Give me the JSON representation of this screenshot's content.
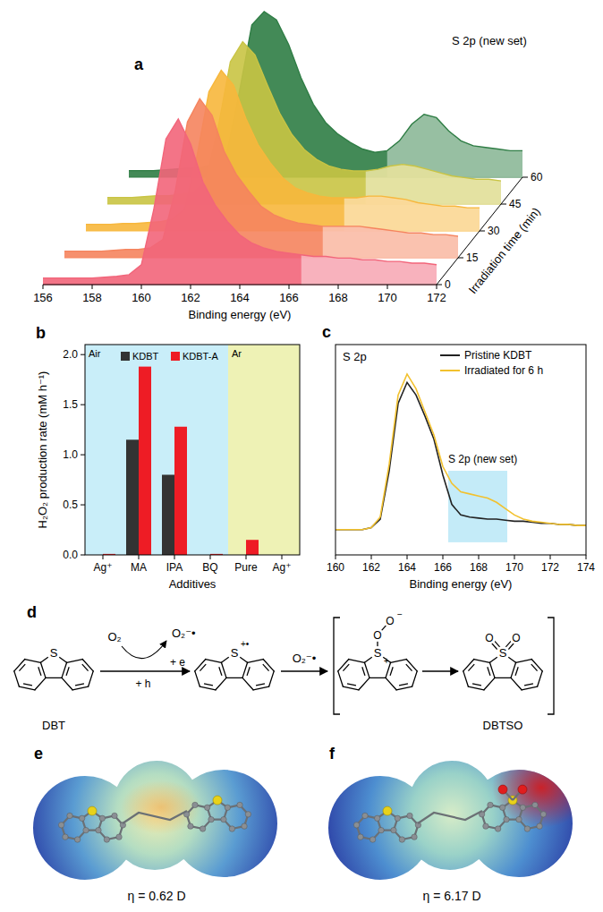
{
  "chart_data": [
    {
      "type": "waterfall",
      "panel_label": "a",
      "annotation": "S 2p (new set)",
      "x_label": "Binding energy (eV)",
      "z_label": "Irradiation time (min)",
      "x": [
        156,
        156.5,
        157,
        157.5,
        158,
        158.5,
        159,
        159.5,
        160,
        160.5,
        161,
        161.5,
        162,
        162.5,
        163,
        163.5,
        164,
        164.5,
        165,
        165.5,
        166,
        166.5,
        167,
        167.5,
        168,
        168.5,
        169,
        169.5,
        170,
        170.5,
        171,
        171.5,
        172
      ],
      "xlim": [
        156,
        172
      ],
      "xticks": [
        156,
        158,
        160,
        162,
        164,
        166,
        168,
        170,
        172
      ],
      "ylim": [
        0,
        100
      ],
      "zlim": [
        0,
        60
      ],
      "zticks": [
        0,
        15,
        30,
        45,
        60
      ],
      "highlight": {
        "x": [
          166.4,
          172
        ]
      },
      "series": [
        {
          "z": 0,
          "color": "#f2657a",
          "values": [
            4,
            4,
            4,
            4,
            4,
            4.5,
            5,
            6,
            12,
            45,
            88,
            100,
            85,
            62,
            48,
            38,
            30,
            25,
            22,
            20,
            19,
            18,
            17,
            17,
            16,
            16,
            15,
            15,
            14,
            14,
            13,
            13,
            12
          ]
        },
        {
          "z": 15,
          "color": "#f5845e",
          "values": [
            4,
            4,
            4,
            4,
            4.5,
            5,
            5,
            6,
            11,
            40,
            82,
            96,
            86,
            64,
            50,
            40,
            31,
            26,
            23,
            21,
            20,
            19,
            19,
            19,
            19,
            18,
            17,
            16,
            15,
            15,
            14,
            14,
            13
          ]
        },
        {
          "z": 30,
          "color": "#f7b73c",
          "values": [
            4,
            4,
            4,
            4.5,
            4.5,
            5,
            5.5,
            7,
            13,
            44,
            84,
            97,
            88,
            68,
            52,
            41,
            32,
            26,
            23,
            21,
            20,
            20,
            20,
            21,
            21,
            20,
            19,
            17,
            16,
            15,
            15,
            14,
            14
          ]
        },
        {
          "z": 45,
          "color": "#c9c444",
          "values": [
            4,
            4,
            4,
            4.5,
            5,
            5,
            6,
            7,
            14,
            46,
            86,
            98,
            90,
            72,
            55,
            42,
            33,
            27,
            23,
            21,
            20,
            20,
            21,
            23,
            24,
            23,
            21,
            19,
            17,
            16,
            15,
            15,
            14
          ]
        },
        {
          "z": 60,
          "color": "#2f7d45",
          "values": [
            4,
            4,
            4,
            4.5,
            5,
            5.5,
            6,
            8,
            16,
            52,
            92,
            100,
            95,
            80,
            60,
            44,
            33,
            26,
            21,
            17,
            15,
            16,
            22,
            32,
            38,
            36,
            28,
            22,
            19,
            18,
            17,
            16,
            16
          ]
        }
      ]
    },
    {
      "type": "bar",
      "panel_label": "b",
      "categories": [
        "Ag⁺",
        "MA",
        "IPA",
        "BQ",
        "Pure",
        "Ag⁺"
      ],
      "series": [
        {
          "name": "KDBT",
          "color": "#333333",
          "values": [
            0,
            1.15,
            0.8,
            0,
            0,
            0
          ]
        },
        {
          "name": "KDBT-A",
          "color": "#ee1c25",
          "values": [
            0.01,
            1.88,
            1.28,
            0.01,
            0.15,
            0
          ]
        }
      ],
      "ylim": [
        0,
        2.1
      ],
      "yticks": [
        {
          "value": 0,
          "label": "0.0"
        },
        {
          "value": 0.5,
          "label": "0.5"
        },
        {
          "value": 1,
          "label": "1.0"
        },
        {
          "value": 1.5,
          "label": "1.5"
        },
        {
          "value": 2,
          "label": "2.0"
        }
      ],
      "y_label": "H₂O₂ production rate (mM h⁻¹)",
      "x_label": "Additives",
      "legend": "top",
      "regions": [
        {
          "label": "Air",
          "from": 0,
          "to": 3,
          "color": "#c9eef9"
        },
        {
          "label": "Ar",
          "from": 4,
          "to": 5,
          "color": "#eef2b5"
        }
      ]
    },
    {
      "type": "line",
      "panel_label": "c",
      "title": "S 2p",
      "annotation": "S 2p (new set)",
      "x_label": "Binding energy (eV)",
      "x": [
        160,
        160.5,
        161,
        161.5,
        162,
        162.5,
        163,
        163.5,
        164,
        164.5,
        165,
        165.5,
        166,
        166.5,
        167,
        167.5,
        168,
        168.5,
        169,
        169.5,
        170,
        170.5,
        171,
        171.5,
        172,
        172.5,
        173,
        173.5,
        174
      ],
      "xlim": [
        160,
        174
      ],
      "xticks": [
        160,
        162,
        164,
        166,
        168,
        170,
        172,
        174
      ],
      "ylim": [
        0,
        100
      ],
      "tick_labels": "x",
      "legend": "upper right",
      "highlight": {
        "x": [
          166.3,
          169.6
        ],
        "y": [
          6,
          40
        ]
      },
      "series": [
        {
          "name": "Pristine KDBT",
          "color": "#222222",
          "values": [
            12,
            12,
            12,
            12,
            13,
            17,
            40,
            72,
            82,
            76,
            66,
            55,
            38,
            24,
            19,
            18,
            17.5,
            17,
            17,
            16.5,
            16,
            16,
            15.5,
            15,
            15,
            14.5,
            14.5,
            14,
            14
          ]
        },
        {
          "name": "Irradiated for 6 h",
          "color": "#f2c12e",
          "values": [
            12,
            12,
            12,
            12,
            13,
            18,
            43,
            76,
            86,
            79,
            68,
            57,
            42,
            34,
            30,
            29,
            28,
            27,
            25,
            22,
            19,
            17,
            16,
            15.5,
            15,
            14.5,
            14.5,
            14,
            14
          ]
        }
      ]
    }
  ],
  "scheme": {
    "panel_label": "d",
    "reactant": "DBT",
    "product": "DBTSO",
    "oxygen": "O₂",
    "superoxide": "O₂⁻•",
    "electron": "+ e",
    "hole": "+ h",
    "sulfur": "S",
    "oxygen_atom": "O",
    "radical_cation": "+•",
    "cation": "+",
    "anion": "−"
  },
  "surfaces": [
    {
      "panel_label": "e",
      "label": "η = 0.62 D"
    },
    {
      "panel_label": "f",
      "label": "η = 6.17 D"
    }
  ]
}
